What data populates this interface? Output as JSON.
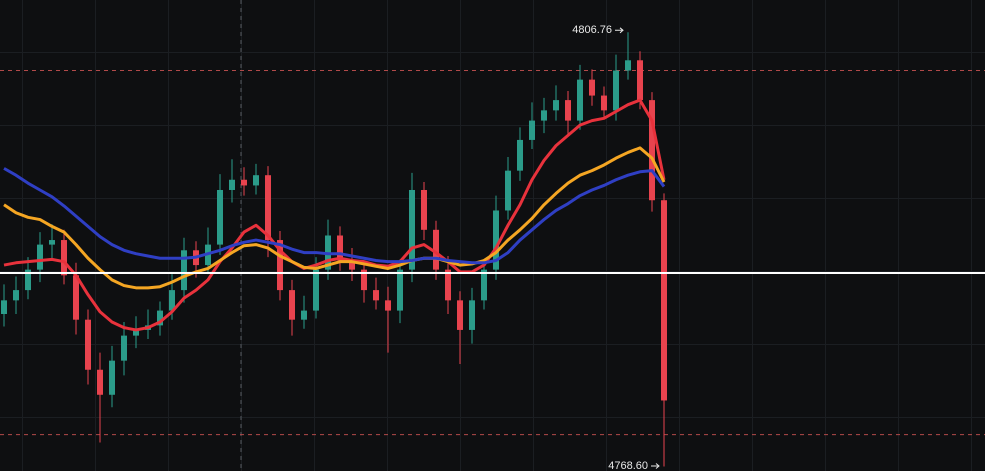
{
  "chart_data": {
    "type": "candlestick",
    "ylim": [
      4768.2,
      4809.6
    ],
    "up_color": "#2b9c8a",
    "down_color": "#e8434e",
    "open": [
      4782.0,
      4783.2,
      4784.1,
      4785.9,
      4788.1,
      4788.5,
      4785.4,
      4781.5,
      4777.1,
      4774.9,
      4777.9,
      4780.1,
      4780.6,
      4781.0,
      4782.3,
      4784.1,
      4787.6,
      4786.3,
      4788.1,
      4792.9,
      4793.8,
      4793.3,
      4794.2,
      4788.5,
      4784.1,
      4781.5,
      4782.3,
      4785.9,
      4788.9,
      4786.7,
      4785.9,
      4784.1,
      4783.2,
      4782.3,
      4785.9,
      4792.9,
      4789.4,
      4785.9,
      4783.2,
      4780.6,
      4783.2,
      4785.9,
      4791.1,
      4794.6,
      4797.3,
      4799.0,
      4799.9,
      4800.8,
      4799.0,
      4802.6,
      4801.2,
      4799.9,
      4803.4,
      4804.3,
      4800.8,
      4792.0
    ],
    "high": [
      4784.6,
      4785.3,
      4787.0,
      4789.2,
      4789.9,
      4789.4,
      4786.5,
      4782.4,
      4778.6,
      4779.2,
      4781.3,
      4781.8,
      4782.4,
      4783.1,
      4785.5,
      4788.7,
      4788.4,
      4789.6,
      4794.3,
      4795.6,
      4794.9,
      4795.2,
      4795.0,
      4789.3,
      4785.0,
      4783.6,
      4787.0,
      4790.3,
      4789.7,
      4787.8,
      4786.6,
      4785.2,
      4784.4,
      4786.8,
      4794.4,
      4793.6,
      4790.2,
      4787.1,
      4784.0,
      4784.3,
      4786.7,
      4792.4,
      4795.8,
      4798.4,
      4800.6,
      4801.0,
      4802.1,
      4801.6,
      4803.9,
      4803.5,
      4802.0,
      4804.8,
      4806.76,
      4805.1,
      4801.5,
      4792.6
    ],
    "low": [
      4780.9,
      4782.0,
      4783.3,
      4784.8,
      4786.9,
      4784.6,
      4780.2,
      4775.8,
      4770.7,
      4773.8,
      4776.6,
      4779.0,
      4779.8,
      4780.1,
      4781.5,
      4783.0,
      4785.2,
      4785.5,
      4787.2,
      4791.8,
      4792.4,
      4792.5,
      4787.0,
      4783.2,
      4780.1,
      4780.7,
      4781.6,
      4785.0,
      4785.8,
      4784.9,
      4783.0,
      4782.4,
      4778.6,
      4781.2,
      4784.8,
      4788.5,
      4785.0,
      4782.0,
      4777.6,
      4779.4,
      4782.4,
      4785.0,
      4790.3,
      4793.7,
      4796.5,
      4797.9,
      4799.0,
      4797.8,
      4798.2,
      4800.3,
      4799.1,
      4799.0,
      4802.6,
      4800.0,
      4791.0,
      4768.6
    ],
    "close": [
      4783.2,
      4784.1,
      4785.9,
      4788.1,
      4788.5,
      4785.4,
      4781.5,
      4777.1,
      4774.9,
      4777.9,
      4780.1,
      4780.6,
      4781.0,
      4782.3,
      4784.1,
      4787.6,
      4786.3,
      4788.1,
      4792.9,
      4793.8,
      4793.3,
      4794.2,
      4788.5,
      4784.1,
      4781.5,
      4782.3,
      4785.9,
      4788.9,
      4786.7,
      4785.9,
      4784.1,
      4783.2,
      4782.3,
      4785.9,
      4792.9,
      4789.4,
      4785.9,
      4783.2,
      4780.6,
      4783.2,
      4785.9,
      4791.1,
      4794.6,
      4797.3,
      4799.0,
      4799.9,
      4800.8,
      4799.0,
      4802.6,
      4801.2,
      4799.9,
      4803.4,
      4804.3,
      4800.8,
      4792.0,
      4774.4
    ],
    "series": [
      {
        "color": "#e8323c",
        "values": [
          4786.3,
          4786.5,
          4786.6,
          4786.7,
          4786.8,
          4786.6,
          4785.4,
          4783.7,
          4782.2,
          4781.3,
          4780.8,
          4780.6,
          4780.8,
          4781.3,
          4782.2,
          4783.4,
          4784.1,
          4785.0,
          4786.6,
          4787.8,
          4789.2,
          4789.8,
          4788.9,
          4787.6,
          4786.6,
          4786.0,
          4786.3,
          4786.7,
          4786.9,
          4786.7,
          4786.6,
          4786.3,
          4786.2,
          4786.6,
          4787.8,
          4788.1,
          4787.4,
          4786.6,
          4785.7,
          4785.7,
          4786.3,
          4787.8,
          4789.8,
          4791.6,
          4793.8,
          4795.5,
          4796.8,
          4797.7,
          4798.6,
          4799.0,
          4799.2,
          4799.8,
          4800.4,
          4800.8,
          4799.0,
          4793.8
        ]
      },
      {
        "color": "#f5a623",
        "values": [
          4791.6,
          4790.9,
          4790.5,
          4790.3,
          4789.7,
          4789.2,
          4788.1,
          4786.9,
          4785.9,
          4785.0,
          4784.5,
          4784.3,
          4784.3,
          4784.4,
          4784.8,
          4785.3,
          4785.7,
          4786.0,
          4786.7,
          4787.4,
          4788.0,
          4788.1,
          4787.8,
          4787.1,
          4786.6,
          4786.1,
          4786.0,
          4786.3,
          4786.6,
          4786.6,
          4786.4,
          4786.2,
          4786.0,
          4786.3,
          4786.7,
          4786.9,
          4786.9,
          4786.6,
          4786.3,
          4786.4,
          4786.7,
          4787.4,
          4788.5,
          4789.4,
          4790.4,
          4791.6,
          4792.6,
          4793.5,
          4794.2,
          4794.6,
          4795.1,
          4795.7,
          4796.2,
          4796.6,
          4795.7,
          4793.6
        ]
      },
      {
        "color": "#2f3fc4",
        "values": [
          4794.8,
          4794.2,
          4793.5,
          4792.9,
          4792.3,
          4791.5,
          4790.6,
          4789.7,
          4788.8,
          4788.1,
          4787.6,
          4787.3,
          4787.1,
          4786.9,
          4786.9,
          4786.9,
          4787.0,
          4787.3,
          4787.6,
          4788.0,
          4788.3,
          4788.5,
          4788.3,
          4788.1,
          4787.7,
          4787.4,
          4787.4,
          4787.3,
          4787.3,
          4787.1,
          4786.9,
          4786.7,
          4786.6,
          4786.6,
          4786.7,
          4786.9,
          4786.9,
          4786.7,
          4786.6,
          4786.5,
          4786.5,
          4786.7,
          4787.4,
          4788.5,
          4789.4,
          4790.3,
          4791.1,
          4791.7,
          4792.4,
          4792.9,
          4793.3,
          4793.8,
          4794.2,
          4794.5,
          4794.6,
          4793.2
        ]
      }
    ],
    "reference_lines": [
      {
        "value": 4785.6,
        "color": "#ffffff",
        "style": "solid"
      },
      {
        "value": 4803.4,
        "color": "#b24a4a",
        "style": "dashed"
      },
      {
        "value": 4771.4,
        "color": "#b24a4a",
        "style": "dashed"
      }
    ],
    "annotations": [
      {
        "value": 4806.76,
        "label": "4806.76",
        "at": "high"
      },
      {
        "value": 4768.6,
        "label": "4768.60",
        "at": "low"
      }
    ]
  }
}
